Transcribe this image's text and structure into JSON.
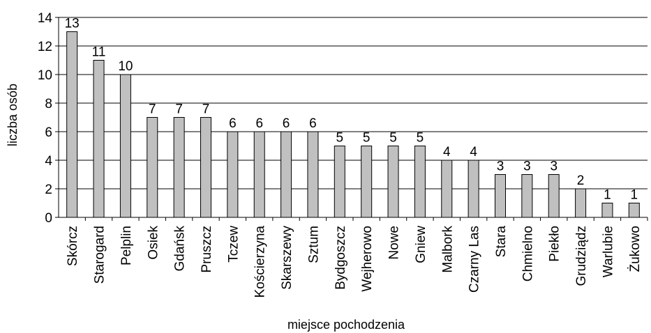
{
  "chart_data": {
    "type": "bar",
    "title": "",
    "xlabel": "miejsce pochodzenia",
    "ylabel": "liczba osób",
    "ylim": [
      0,
      14
    ],
    "yticks": [
      0,
      2,
      4,
      6,
      8,
      10,
      12,
      14
    ],
    "grid": true,
    "legend": "none",
    "bar_color": "#c0c0c0",
    "categories": [
      "Skórcz",
      "Starogard",
      "Pelplin",
      "Osiek",
      "Gdańsk",
      "Pruszcz",
      "Tczew",
      "Kościerzyna",
      "Skarszewy",
      "Sztum",
      "Bydgoszcz",
      "Wejherowo",
      "Nowe",
      "Gniew",
      "Malbork",
      "Czarny Las",
      "Stara",
      "Chmielno",
      "Piekło",
      "Grudziądz",
      "Warlubie",
      "Żukowo"
    ],
    "values": [
      13,
      11,
      10,
      7,
      7,
      7,
      6,
      6,
      6,
      6,
      5,
      5,
      5,
      5,
      4,
      4,
      3,
      3,
      3,
      2,
      1,
      1
    ]
  }
}
